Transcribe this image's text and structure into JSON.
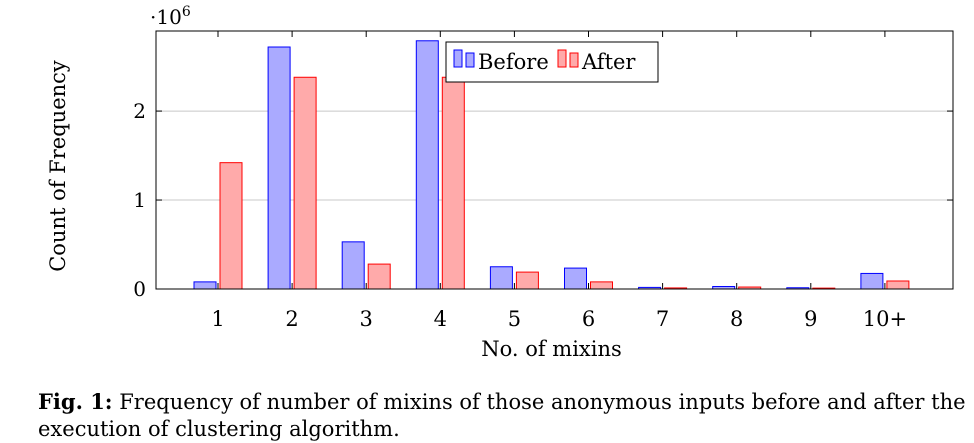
{
  "chart_data": {
    "type": "bar",
    "categories": [
      "1",
      "2",
      "3",
      "4",
      "5",
      "6",
      "7",
      "8",
      "9",
      "10+"
    ],
    "series": [
      {
        "name": "Before",
        "color": "#aaaaff",
        "stroke": "#0000ff",
        "values": [
          80000,
          2720000,
          530000,
          2790000,
          250000,
          235000,
          18000,
          28000,
          14000,
          175000
        ]
      },
      {
        "name": "After",
        "color": "#ffaaaa",
        "stroke": "#ff0000",
        "values": [
          1420000,
          2380000,
          280000,
          2380000,
          190000,
          80000,
          12000,
          22000,
          10000,
          90000
        ]
      }
    ],
    "xlabel": "No. of mixins",
    "ylabel": "Count of Frequency",
    "yticks": [
      {
        "value": 0,
        "label": "0"
      },
      {
        "value": 1000000,
        "label": "1"
      },
      {
        "value": 2000000,
        "label": "2"
      }
    ],
    "ylim": [
      0,
      2900000
    ],
    "y_multiplier": "·10",
    "y_multiplier_exp": "6",
    "grid": "horizontal",
    "legend_position": "top-center"
  },
  "caption": {
    "label": "Fig. 1:",
    "text": " Frequency of number of mixins of those anonymous inputs before and after the execution of clustering algorithm."
  }
}
